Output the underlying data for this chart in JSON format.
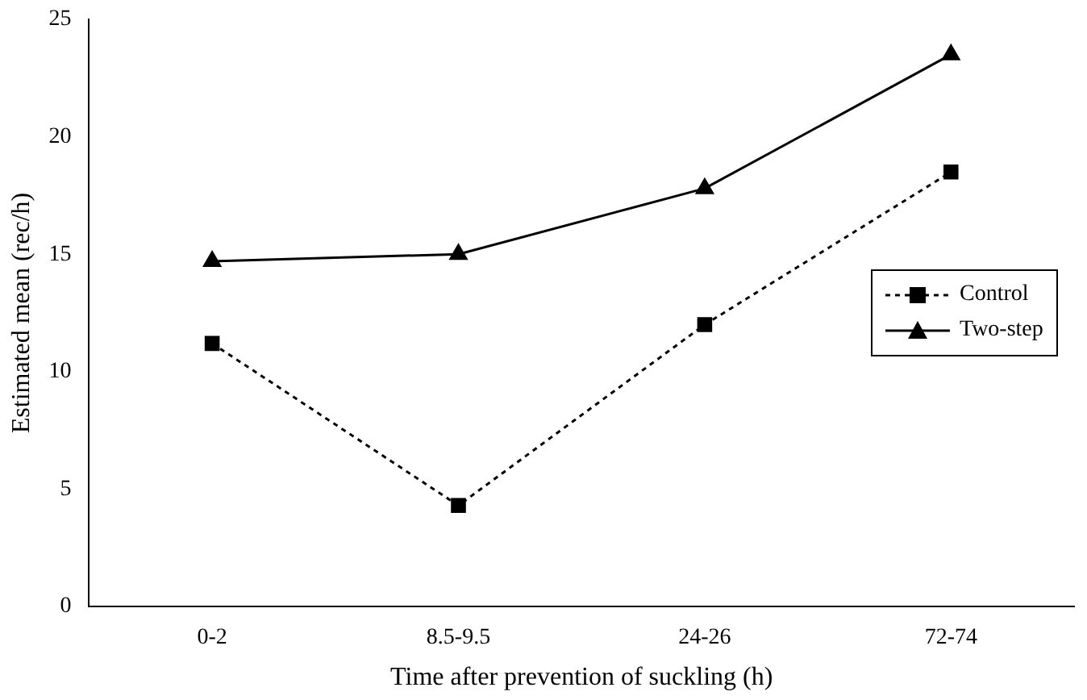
{
  "chart_data": {
    "type": "line",
    "xlabel": "Time after prevention of suckling (h)",
    "ylabel": "Estimated mean (rec/h)",
    "categories": [
      "0-2",
      "8.5-9.5",
      "24-26",
      "72-74"
    ],
    "series": [
      {
        "name": "Control",
        "color": "#000000",
        "values": [
          11.2,
          4.3,
          12.0,
          18.5
        ],
        "marker": "square",
        "line_style": "dotted"
      },
      {
        "name": "Two-step",
        "color": "#000000",
        "values": [
          14.7,
          15.0,
          17.8,
          23.5
        ],
        "marker": "triangle",
        "line_style": "solid"
      }
    ],
    "ylim": [
      0,
      25
    ],
    "yticks": [
      0,
      5,
      10,
      15,
      20,
      25
    ],
    "grid": false,
    "legend": "right"
  }
}
